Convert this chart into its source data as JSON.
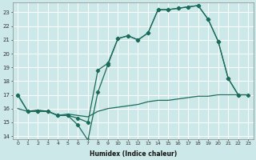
{
  "xlabel": "Humidex (Indice chaleur)",
  "bg_color": "#cce8e8",
  "line_color": "#1a6b5a",
  "grid_color": "#ffffff",
  "xlim": [
    -0.5,
    23.5
  ],
  "ylim": [
    13.8,
    23.7
  ],
  "yticks": [
    14,
    15,
    16,
    17,
    18,
    19,
    20,
    21,
    22,
    23
  ],
  "xticks": [
    0,
    1,
    2,
    3,
    4,
    5,
    6,
    7,
    8,
    9,
    10,
    11,
    12,
    13,
    14,
    15,
    16,
    17,
    18,
    19,
    20,
    21,
    22,
    23
  ],
  "line1_x": [
    0,
    1,
    2,
    3,
    4,
    5,
    6,
    7,
    8,
    9,
    10,
    11,
    12,
    13,
    14,
    15,
    16,
    17,
    18,
    19,
    20,
    21,
    22
  ],
  "line1_y": [
    17.0,
    15.8,
    15.8,
    15.8,
    15.5,
    15.5,
    14.8,
    13.7,
    17.2,
    19.2,
    21.1,
    21.3,
    21.0,
    21.5,
    23.2,
    23.2,
    23.3,
    23.4,
    23.5,
    22.5,
    20.9,
    18.2,
    17.0
  ],
  "line2_x": [
    0,
    1,
    2,
    3,
    4,
    5,
    6,
    7,
    8,
    9,
    10,
    11,
    12,
    13,
    14,
    15,
    16,
    17,
    18,
    19,
    20,
    21,
    22,
    23
  ],
  "line2_y": [
    17.0,
    15.8,
    15.8,
    15.8,
    15.5,
    15.5,
    15.3,
    15.0,
    18.8,
    19.3,
    21.1,
    21.3,
    21.0,
    21.5,
    23.2,
    23.2,
    23.3,
    23.4,
    23.5,
    22.5,
    20.9,
    18.2,
    17.0,
    17.0
  ],
  "line3_x": [
    0,
    1,
    2,
    3,
    4,
    5,
    6,
    7,
    8,
    9,
    10,
    11,
    12,
    13,
    14,
    15,
    16,
    17,
    18,
    19,
    20,
    21,
    22,
    23
  ],
  "line3_y": [
    16.0,
    15.8,
    15.9,
    15.8,
    15.5,
    15.6,
    15.5,
    15.4,
    15.8,
    16.0,
    16.1,
    16.2,
    16.3,
    16.5,
    16.6,
    16.6,
    16.7,
    16.8,
    16.9,
    16.9,
    17.0,
    17.0,
    17.0,
    17.0
  ],
  "markersize": 2.2,
  "linewidth": 0.9
}
